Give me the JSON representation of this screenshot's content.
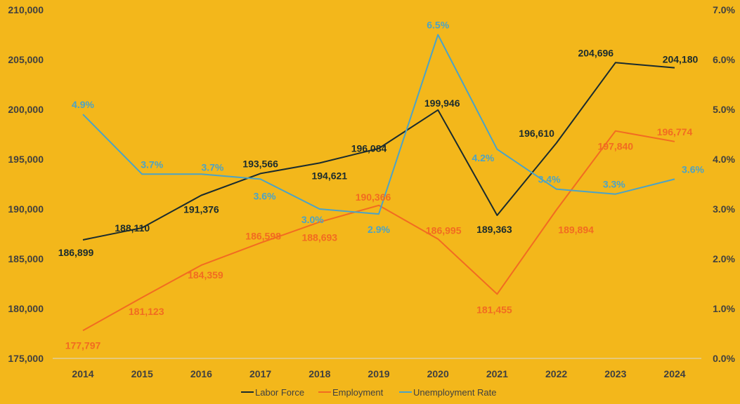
{
  "colors": {
    "background": "#F3B71B",
    "labor_force": "#1A2B2E",
    "employment": "#F26B21",
    "unemployment_rate": "#4BA3C7",
    "axis_text": "#404040",
    "baseline": "#D9D9D9"
  },
  "chart_data": {
    "type": "line",
    "title": "",
    "xlabel": "",
    "ylabel": "",
    "categories": [
      "2014",
      "2015",
      "2016",
      "2017",
      "2018",
      "2019",
      "2020",
      "2021",
      "2022",
      "2023",
      "2024"
    ],
    "y_left": {
      "min": 175000,
      "max": 210000,
      "step": 5000,
      "tick_labels": [
        "175,000",
        "180,000",
        "185,000",
        "190,000",
        "195,000",
        "200,000",
        "205,000",
        "210,000"
      ]
    },
    "y_right": {
      "min": 0,
      "max": 0.07,
      "step": 0.01,
      "tick_labels": [
        "0.0%",
        "1.0%",
        "2.0%",
        "3.0%",
        "4.0%",
        "5.0%",
        "6.0%",
        "7.0%"
      ]
    },
    "grid": false,
    "legend_position": "bottom",
    "series": [
      {
        "key": "labor_force",
        "name": "Labor Force",
        "axis": "left",
        "values": [
          186899,
          188110,
          191376,
          193566,
          194621,
          196084,
          199946,
          189363,
          196610,
          204696,
          204180
        ],
        "labels": [
          "186,899",
          "188,110",
          "191,376",
          "193,566",
          "194,621",
          "196,084",
          "199,946",
          "189,363",
          "196,610",
          "204,696",
          "204,180"
        ]
      },
      {
        "key": "employment",
        "name": "Employment",
        "axis": "left",
        "values": [
          177797,
          181123,
          184359,
          186598,
          188693,
          190366,
          186995,
          181455,
          189894,
          197840,
          196774
        ],
        "labels": [
          "177,797",
          "181,123",
          "184,359",
          "186,598",
          "188,693",
          "190,366",
          "186,995",
          "181,455",
          "189,894",
          "197,840",
          "196,774"
        ]
      },
      {
        "key": "unemployment_rate",
        "name": "Unemployment Rate",
        "axis": "right",
        "values": [
          0.049,
          0.037,
          0.037,
          0.036,
          0.03,
          0.029,
          0.065,
          0.042,
          0.034,
          0.033,
          0.036
        ],
        "labels": [
          "4.9%",
          "3.7%",
          "3.7%",
          "3.6%",
          "3.0%",
          "2.9%",
          "6.5%",
          "4.2%",
          "3.4%",
          "3.3%",
          "3.6%"
        ]
      }
    ]
  }
}
